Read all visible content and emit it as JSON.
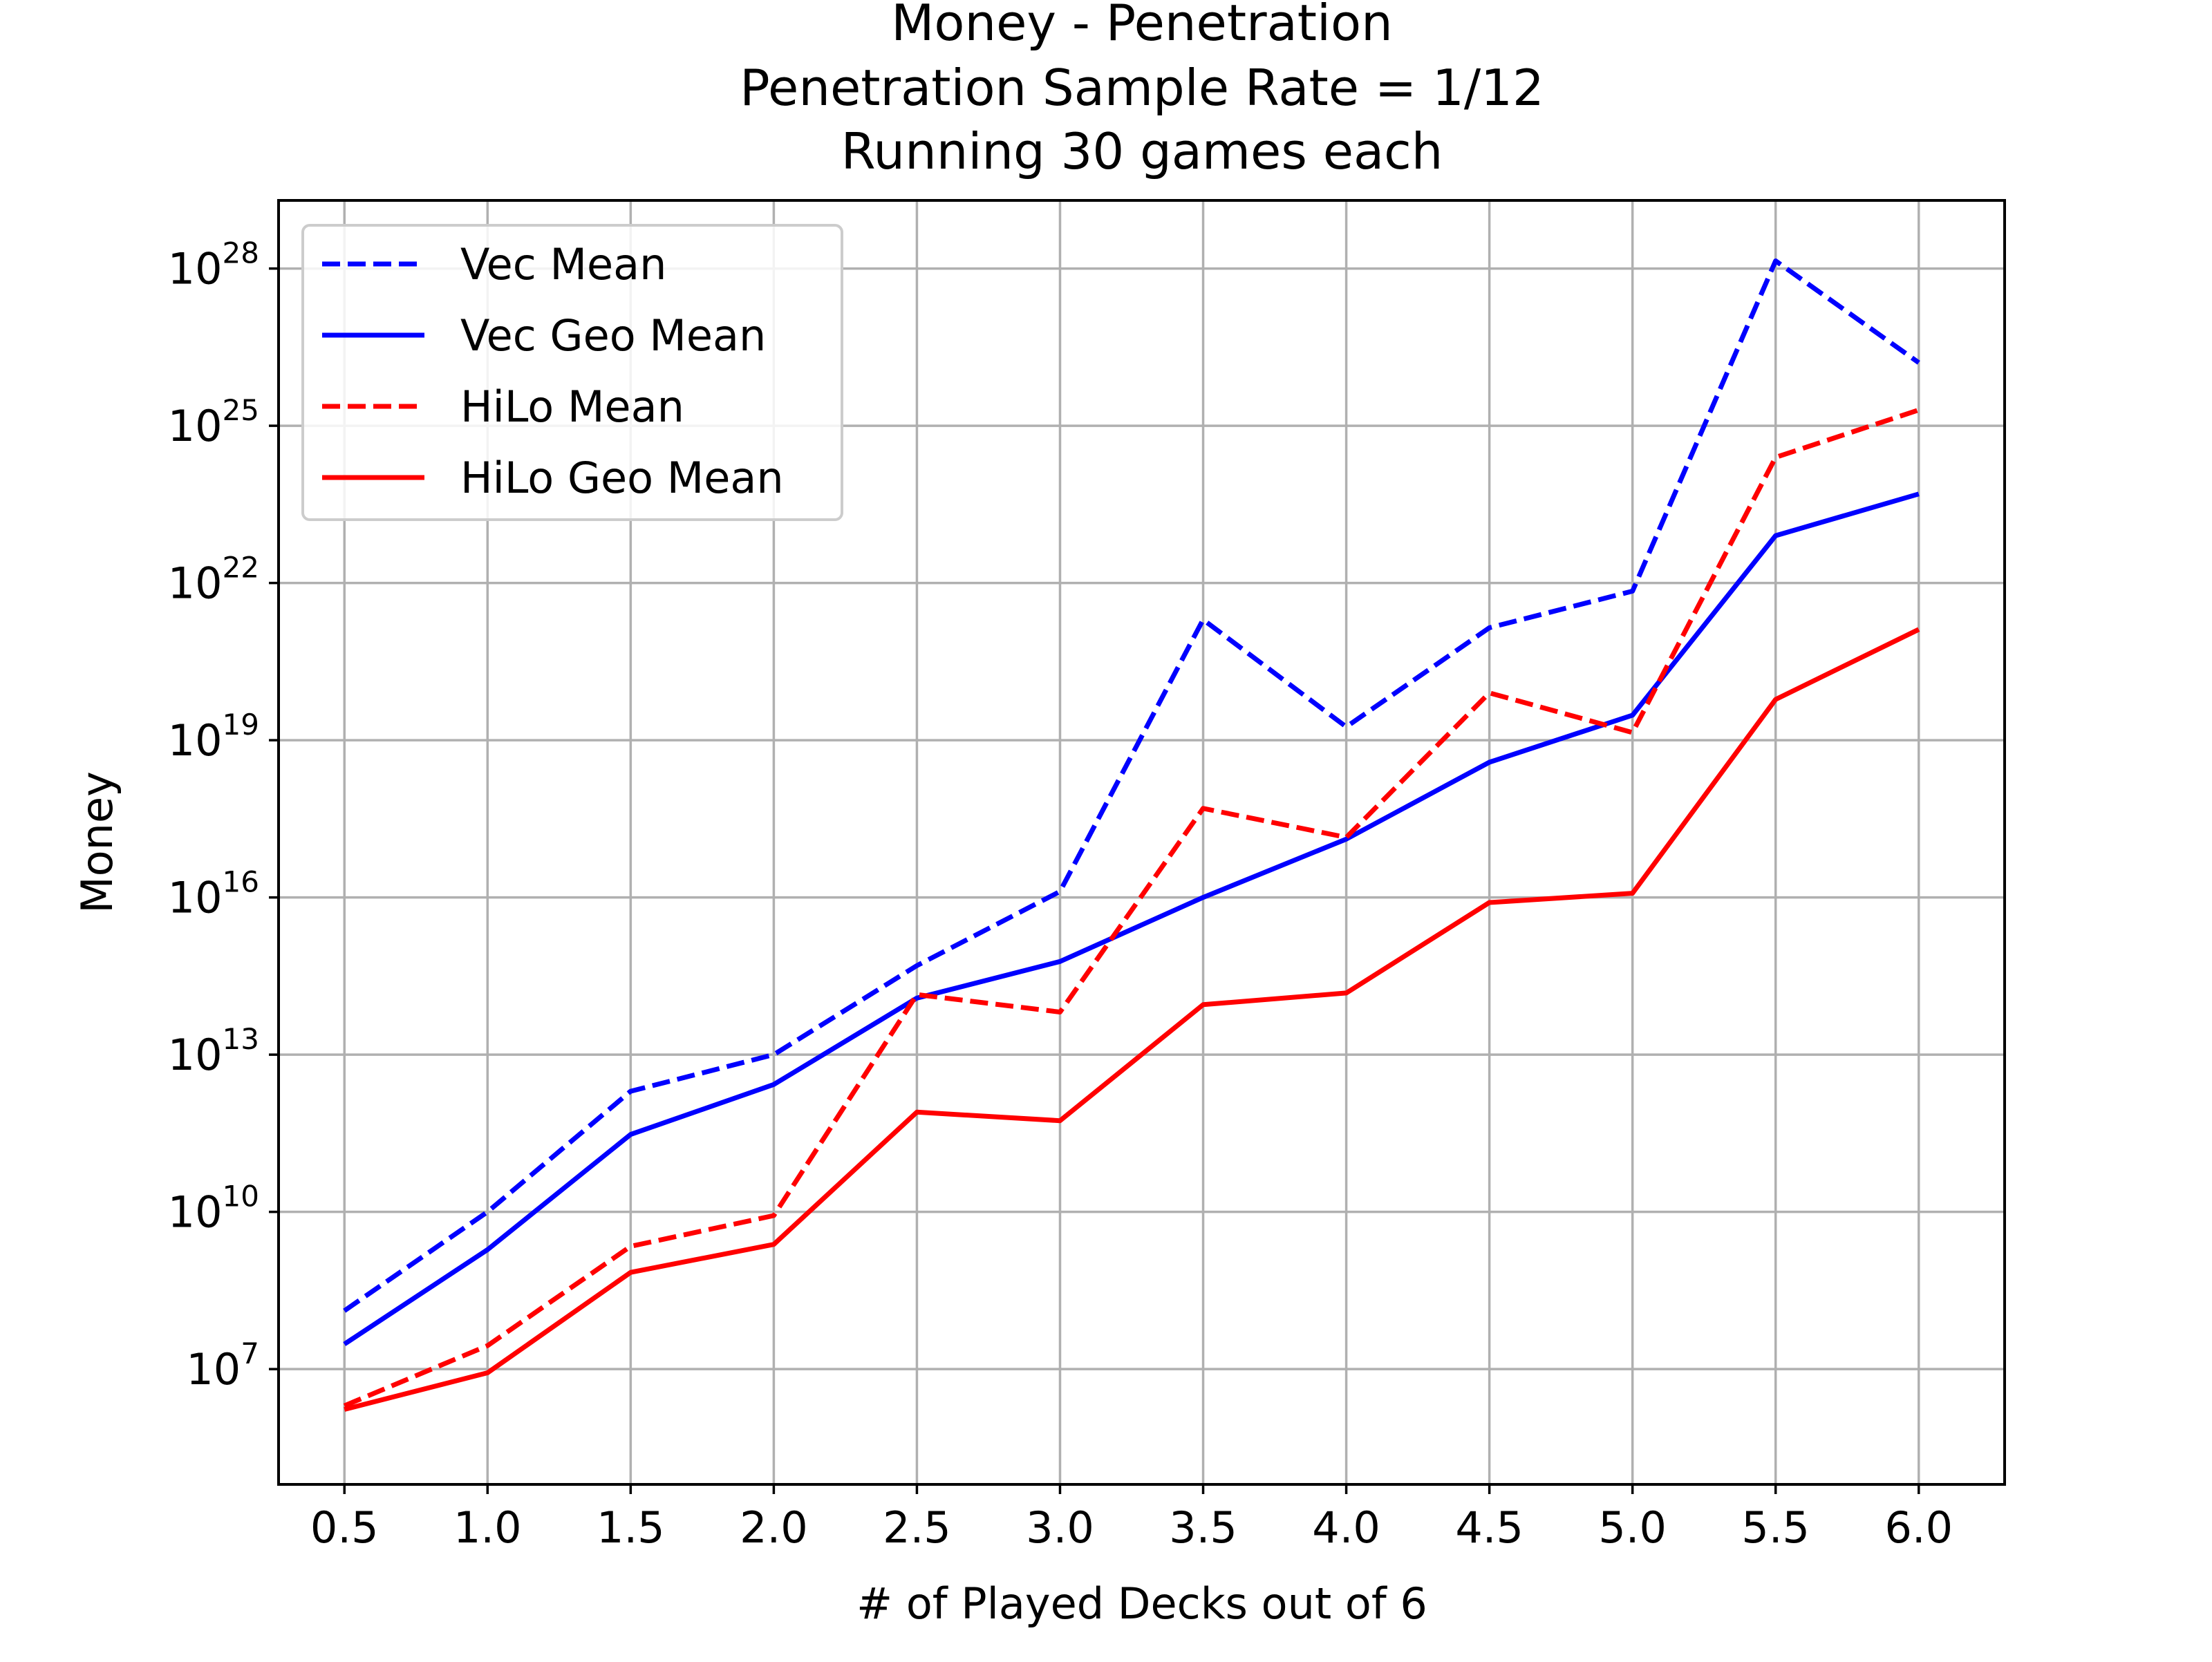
{
  "chart_data": {
    "type": "line",
    "title_lines": [
      "Money - Penetration",
      "Penetration Sample Rate = 1/12",
      "Running 30 games each"
    ],
    "xlabel": "# of Played Decks out of 6",
    "ylabel": "Money",
    "x": [
      0.5,
      1.0,
      1.5,
      2.0,
      2.5,
      3.0,
      3.5,
      4.0,
      4.5,
      5.0,
      5.5,
      6.0
    ],
    "x_tick_labels": [
      "0.5",
      "1.0",
      "1.5",
      "2.0",
      "2.5",
      "3.0",
      "3.5",
      "4.0",
      "4.5",
      "5.0",
      "5.5",
      "6.0"
    ],
    "xlim": [
      0.27,
      6.3
    ],
    "y_scale": "log",
    "ylim_exponent": [
      4.8,
      29.3
    ],
    "y_ticks": [
      {
        "base": "10",
        "exp": "7",
        "value_exp": 7
      },
      {
        "base": "10",
        "exp": "10",
        "value_exp": 10
      },
      {
        "base": "10",
        "exp": "13",
        "value_exp": 13
      },
      {
        "base": "10",
        "exp": "16",
        "value_exp": 16
      },
      {
        "base": "10",
        "exp": "19",
        "value_exp": 19
      },
      {
        "base": "10",
        "exp": "22",
        "value_exp": 22
      },
      {
        "base": "10",
        "exp": "25",
        "value_exp": 25
      },
      {
        "base": "10",
        "exp": "28",
        "value_exp": 28
      }
    ],
    "grid": true,
    "legend_position": "top-left",
    "series": [
      {
        "name": "Vec Mean",
        "color": "#0000ff",
        "line_style": "dashed",
        "y": [
          130000000.0,
          10000000000.0,
          2000000000000.0,
          10000000000000.0,
          500000000000000.0,
          1.3e+16,
          2e+21,
          1.8e+19,
          1.4e+21,
          7e+21,
          1.4e+28,
          1.6e+26
        ]
      },
      {
        "name": "Vec Geo Mean",
        "color": "#0000ff",
        "line_style": "solid",
        "y": [
          30000000.0,
          1900000000.0,
          300000000000.0,
          2700000000000.0,
          120000000000000.0,
          600000000000000.0,
          1e+16,
          1.3e+17,
          3.8e+18,
          3e+19,
          8e+22,
          5e+23
        ]
      },
      {
        "name": "HiLo Mean",
        "color": "#ff0000",
        "line_style": "dashed",
        "y": [
          2000000.0,
          28000000.0,
          2200000000.0,
          8500000000.0,
          140000000000000.0,
          65000000000000.0,
          5e+17,
          1.4e+17,
          8e+19,
          1.4e+19,
          2.5e+24,
          2e+25
        ]
      },
      {
        "name": "HiLo Geo Mean",
        "color": "#ff0000",
        "line_style": "solid",
        "y": [
          1700000.0,
          8500000.0,
          700000000.0,
          2400000000.0,
          800000000000.0,
          550000000000.0,
          90000000000000.0,
          150000000000000.0,
          8000000000000000.0,
          1.2e+16,
          6e+19,
          1.3e+21
        ]
      }
    ]
  }
}
